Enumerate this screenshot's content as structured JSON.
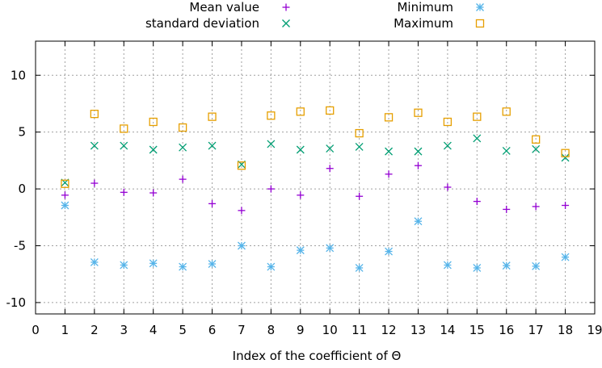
{
  "chart_data": {
    "type": "scatter",
    "xlabel": "Index of the coefficient of Θ",
    "ylabel": "",
    "xlim": [
      0,
      19
    ],
    "ylim": [
      -11,
      13
    ],
    "x_ticks": [
      0,
      1,
      2,
      3,
      4,
      5,
      6,
      7,
      8,
      9,
      10,
      11,
      12,
      13,
      14,
      15,
      16,
      17,
      18,
      19
    ],
    "y_ticks": [
      -10,
      -5,
      0,
      5,
      10
    ],
    "grid": true,
    "legend_position": "top",
    "x": [
      1,
      2,
      3,
      4,
      5,
      6,
      7,
      8,
      9,
      10,
      11,
      12,
      13,
      14,
      15,
      16,
      17,
      18
    ],
    "series": [
      {
        "name": "Mean value",
        "marker": "plus",
        "color": "#9400d3",
        "values": [
          -0.55,
          0.5,
          -0.3,
          -0.35,
          0.85,
          -1.3,
          -1.9,
          0.0,
          -0.55,
          1.8,
          -0.65,
          1.3,
          2.05,
          0.15,
          -1.1,
          -1.8,
          -1.55,
          -1.45
        ]
      },
      {
        "name": "standard deviation",
        "marker": "cross",
        "color": "#009e73",
        "values": [
          0.55,
          3.8,
          3.8,
          3.45,
          3.65,
          3.8,
          2.15,
          3.95,
          3.45,
          3.55,
          3.7,
          3.3,
          3.3,
          3.8,
          4.45,
          3.35,
          3.5,
          2.75
        ]
      },
      {
        "name": "Minimum",
        "marker": "star",
        "color": "#56b4e9",
        "values": [
          -1.45,
          -6.45,
          -6.7,
          -6.55,
          -6.85,
          -6.6,
          -5.0,
          -6.85,
          -5.4,
          -5.2,
          -6.95,
          -5.5,
          -2.85,
          -6.7,
          -6.95,
          -6.75,
          -6.8,
          -6.0
        ]
      },
      {
        "name": "Maximum",
        "marker": "square",
        "color": "#e69f00",
        "values": [
          0.45,
          6.6,
          5.3,
          5.9,
          5.4,
          6.35,
          2.05,
          6.45,
          6.8,
          6.9,
          4.9,
          6.3,
          6.7,
          5.9,
          6.35,
          6.8,
          4.35,
          3.15
        ]
      }
    ]
  }
}
